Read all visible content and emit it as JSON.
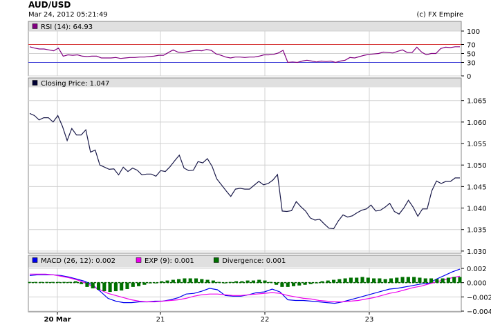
{
  "header": {
    "symbol": "AUD/USD",
    "timestamp": "Mar 24, 2012 05:21:49",
    "credit": "(c) FX Empire"
  },
  "chart_data": [
    {
      "type": "line",
      "panel": "rsi",
      "legend": [
        {
          "label": "RSI (14): 64.93",
          "color": "#800080"
        }
      ],
      "yticks": [
        "100",
        "70",
        "50",
        "30",
        "0"
      ],
      "reference_lines": [
        {
          "value": 70,
          "label": "70",
          "color": "#d84040"
        },
        {
          "value": 30,
          "label": "30",
          "color": "#4040d8"
        }
      ],
      "ylim": [
        0,
        100
      ],
      "grid": true,
      "series": [
        {
          "color": "#800080",
          "values": [
            65,
            62,
            60,
            60,
            58,
            56,
            62,
            44,
            47,
            46,
            47,
            44,
            43,
            44,
            44,
            40,
            40,
            40,
            41,
            39,
            40,
            41,
            41,
            42,
            42,
            43,
            44,
            46,
            46,
            52,
            58,
            53,
            52,
            54,
            56,
            57,
            56,
            59,
            57,
            49,
            46,
            42,
            40,
            42,
            42,
            41,
            42,
            42,
            44,
            47,
            47,
            48,
            51,
            57,
            30,
            31,
            30,
            33,
            35,
            33,
            31,
            33,
            32,
            33,
            30,
            33,
            35,
            41,
            40,
            43,
            46,
            48,
            49,
            50,
            53,
            52,
            51,
            55,
            58,
            52,
            52,
            64,
            53,
            47,
            50,
            50,
            61,
            64,
            63,
            65,
            64.9
          ]
        }
      ]
    },
    {
      "type": "line",
      "panel": "price",
      "legend": [
        {
          "label": "Closing Price: 1.047",
          "color": "#000033"
        }
      ],
      "yticks": [
        "1.065",
        "1.060",
        "1.055",
        "1.050",
        "1.045",
        "1.040",
        "1.035",
        "1.030"
      ],
      "ylim": [
        1.0295,
        1.068
      ],
      "grid": true,
      "series": [
        {
          "color": "#1a1a4a",
          "values": [
            1.062,
            1.0615,
            1.0605,
            1.061,
            1.061,
            1.06,
            1.0615,
            1.059,
            1.0557,
            1.0585,
            1.057,
            1.057,
            1.0582,
            1.053,
            1.0535,
            1.05,
            1.0495,
            1.049,
            1.0491,
            1.0477,
            1.0495,
            1.0485,
            1.0493,
            1.0488,
            1.0477,
            1.0479,
            1.0479,
            1.0474,
            1.0487,
            1.0485,
            1.0496,
            1.051,
            1.0523,
            1.0493,
            1.0487,
            1.0488,
            1.0508,
            1.0505,
            1.0515,
            1.0497,
            1.0468,
            1.0454,
            1.044,
            1.0427,
            1.0444,
            1.0446,
            1.0444,
            1.0444,
            1.0453,
            1.0462,
            1.0454,
            1.0457,
            1.0465,
            1.0478,
            1.0393,
            1.0392,
            1.0394,
            1.0415,
            1.0403,
            1.0393,
            1.0377,
            1.0372,
            1.0374,
            1.0363,
            1.0353,
            1.0352,
            1.037,
            1.0384,
            1.0379,
            1.0382,
            1.0389,
            1.0395,
            1.0398,
            1.0407,
            1.0393,
            1.0395,
            1.0402,
            1.0411,
            1.0392,
            1.0386,
            1.04,
            1.0418,
            1.0402,
            1.0381,
            1.0398,
            1.0398,
            1.044,
            1.0463,
            1.0457,
            1.0462,
            1.0462,
            1.047,
            1.047
          ]
        }
      ]
    },
    {
      "type": "line",
      "panel": "macd",
      "legend": [
        {
          "label": "MACD (26, 12): 0.002",
          "color": "#0000ee"
        },
        {
          "label": "EXP (9): 0.001",
          "color": "#ee00ee"
        },
        {
          "label": "Divergence: 0.001",
          "color": "#007000"
        }
      ],
      "yticks": [
        "0.002",
        "0.000",
        "−0.002",
        "−0.004"
      ],
      "ylim": [
        -0.0041,
        0.0021
      ],
      "grid": true,
      "series": [
        {
          "color": "#0000ee",
          "values": [
            0.001,
            0.0011,
            0.0011,
            0.0011,
            0.001,
            0.0008,
            0.0005,
            0.0002,
            -0.0003,
            -0.0012,
            -0.0022,
            -0.0026,
            -0.0028,
            -0.0028,
            -0.0027,
            -0.0027,
            -0.0026,
            -0.0026,
            -0.0024,
            -0.0021,
            -0.0016,
            -0.0015,
            -0.0012,
            -0.0008,
            -0.001,
            -0.0018,
            -0.0019,
            -0.0019,
            -0.0017,
            -0.0014,
            -0.0013,
            -0.0009,
            -0.0013,
            -0.0024,
            -0.0025,
            -0.0025,
            -0.0026,
            -0.0027,
            -0.0028,
            -0.0029,
            -0.0027,
            -0.0024,
            -0.0021,
            -0.0018,
            -0.0015,
            -0.0012,
            -0.0009,
            -0.0008,
            -0.0006,
            -0.0004,
            -0.0002,
            -0.0001,
            0.0005,
            0.001,
            0.0015,
            0.0019
          ]
        },
        {
          "color": "#ee00ee",
          "values": [
            0.0012,
            0.0012,
            0.0012,
            0.0011,
            0.0009,
            0.0007,
            0.0004,
            0.0,
            -0.0005,
            -0.001,
            -0.0015,
            -0.0018,
            -0.0021,
            -0.0024,
            -0.0026,
            -0.0027,
            -0.0027,
            -0.0026,
            -0.0025,
            -0.0024,
            -0.0022,
            -0.0019,
            -0.0017,
            -0.0016,
            -0.0016,
            -0.0017,
            -0.0018,
            -0.0018,
            -0.0017,
            -0.0016,
            -0.0015,
            -0.0014,
            -0.0015,
            -0.0018,
            -0.002,
            -0.0022,
            -0.0023,
            -0.0025,
            -0.0026,
            -0.0027,
            -0.0027,
            -0.0026,
            -0.0025,
            -0.0023,
            -0.0021,
            -0.0018,
            -0.0015,
            -0.0013,
            -0.001,
            -0.0007,
            -0.0005,
            -0.0002,
            0.0001,
            0.0004,
            0.0007,
            0.0009
          ]
        },
        {
          "color": "#007000",
          "type": "bar",
          "values": [
            0.0001,
            0.0001,
            0.0001,
            0.0001,
            0.0001,
            0.0001,
            0.0001,
            0.0001,
            0.0002,
            -0.0002,
            -0.0006,
            -0.0008,
            -0.001,
            -0.0012,
            -0.0013,
            -0.0012,
            -0.0011,
            -0.0009,
            -0.0006,
            -0.0005,
            -0.0003,
            -0.0001,
            0.0,
            0.0002,
            0.0003,
            0.0004,
            0.0005,
            0.0006,
            0.0006,
            0.0006,
            0.0005,
            0.0004,
            0.0003,
            0.0001,
            0.0,
            0.0001,
            0.0002,
            0.0002,
            0.0003,
            0.0003,
            0.0004,
            0.0003,
            0.0001,
            -0.0003,
            -0.0006,
            -0.0006,
            -0.0005,
            -0.0004,
            -0.0003,
            -0.0002,
            0.0,
            0.0002,
            0.0003,
            0.0004,
            0.0005,
            0.0006,
            0.0007,
            0.0007,
            0.0008,
            0.0007,
            0.0006,
            0.0006,
            0.0005,
            0.0006,
            0.0007,
            0.0008,
            0.0008,
            0.0008,
            0.0007,
            0.0006,
            0.0006,
            0.0005,
            0.0006,
            0.0007,
            0.0008,
            0.0008
          ]
        }
      ]
    }
  ],
  "xaxis": {
    "labels": [
      "20 Mar",
      "21",
      "22",
      "23"
    ]
  }
}
